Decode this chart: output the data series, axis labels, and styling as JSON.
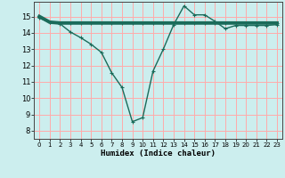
{
  "xlabel": "Humidex (Indice chaleur)",
  "ylabel": "",
  "bg_color": "#cceeee",
  "grid_color": "#ffaaaa",
  "line_color": "#1a6b5a",
  "xlim": [
    -0.5,
    23.5
  ],
  "ylim": [
    7.5,
    15.9
  ],
  "yticks": [
    8,
    9,
    10,
    11,
    12,
    13,
    14,
    15
  ],
  "xticks": [
    0,
    1,
    2,
    3,
    4,
    5,
    6,
    7,
    8,
    9,
    10,
    11,
    12,
    13,
    14,
    15,
    16,
    17,
    18,
    19,
    20,
    21,
    22,
    23
  ],
  "line1_x": [
    0,
    1,
    2,
    3,
    4,
    5,
    6,
    7,
    8,
    9,
    10,
    11,
    12,
    13,
    14,
    15,
    16,
    17,
    18,
    19,
    20,
    21,
    22,
    23
  ],
  "line1_y": [
    15.0,
    14.65,
    14.6,
    14.6,
    14.6,
    14.6,
    14.6,
    14.6,
    14.6,
    14.6,
    14.6,
    14.6,
    14.6,
    14.6,
    14.6,
    14.6,
    14.6,
    14.6,
    14.6,
    14.6,
    14.6,
    14.6,
    14.6,
    14.6
  ],
  "line2_x": [
    0,
    1,
    2,
    3,
    4,
    5,
    6,
    7,
    8,
    9,
    10,
    11,
    12,
    13,
    14,
    15,
    16,
    17,
    18,
    19,
    20,
    21,
    22,
    23
  ],
  "line2_y": [
    14.9,
    14.65,
    14.55,
    14.05,
    13.7,
    13.3,
    12.8,
    11.55,
    10.65,
    8.55,
    8.8,
    11.65,
    13.0,
    14.5,
    15.65,
    15.1,
    15.1,
    14.7,
    14.25,
    14.45,
    14.45,
    14.45,
    14.45,
    14.5
  ]
}
